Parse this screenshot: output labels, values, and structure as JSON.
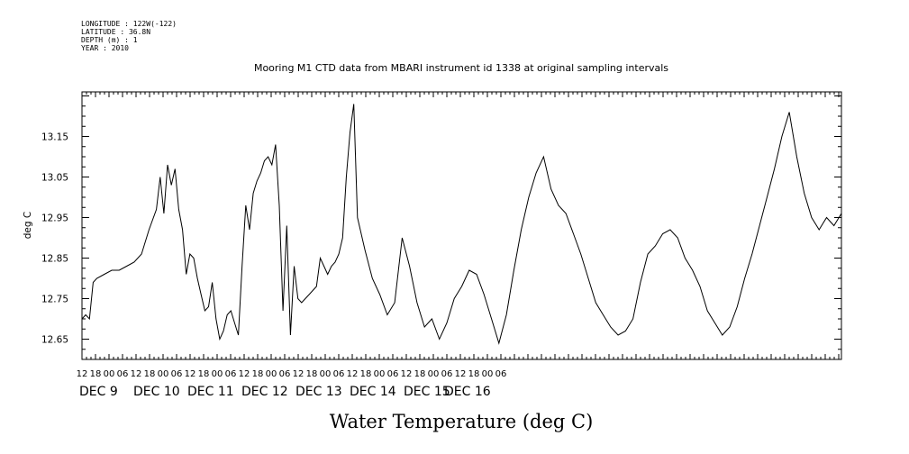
{
  "header": {
    "longitude": "LONGITUDE : 122W(-122)",
    "latitude": "LATITUDE : 36.8N",
    "depth": "DEPTH (m) : 1",
    "year": "YEAR : 2010"
  },
  "chart_data": {
    "type": "line",
    "title": "Mooring M1 CTD data from MBARI instrument id 1338 at original sampling intervals",
    "xlabel": "Water Temperature (deg C)",
    "ylabel": "deg C",
    "x_unit": "hours since DEC 9 00:00",
    "xlim": [
      -12,
      90
    ],
    "ylim": [
      12.6,
      13.26
    ],
    "yticks": [
      12.65,
      12.75,
      12.85,
      12.95,
      13.05,
      13.15
    ],
    "ytick_labels": [
      "12.65",
      "12.75",
      "12.85",
      "12.95",
      "13.05",
      "13.15"
    ],
    "hour_labels": [
      "12",
      "18",
      "00",
      "06",
      "12",
      "18",
      "00",
      "06",
      "12",
      "18",
      "00",
      "06",
      "12",
      "18",
      "00",
      "06",
      "12",
      "18",
      "00",
      "06",
      "12",
      "18",
      "00",
      "06",
      "12",
      "18",
      "00",
      "06",
      "12",
      "18",
      "00",
      "06"
    ],
    "day_labels": [
      {
        "label": "DEC  9",
        "x": -12
      },
      {
        "label": "DEC 10",
        "x": 12
      },
      {
        "label": "DEC 11",
        "x": 36
      },
      {
        "label": "DEC 12",
        "x": 60
      },
      {
        "label": "DEC 13",
        "x": 84
      },
      {
        "label": "DEC 14",
        "x": 108
      },
      {
        "label": "DEC 15",
        "x": 132
      },
      {
        "label": "DEC 16",
        "x": 150
      }
    ],
    "grid": false,
    "series": [
      {
        "color": "#000000",
        "x": [
          -12,
          -11.5,
          -11,
          -10.5,
          -10,
          -9,
          -8,
          -7,
          -6,
          -5,
          -4,
          -3,
          -2,
          -1.5,
          -1,
          -0.5,
          0,
          0.5,
          1,
          1.5,
          2,
          2.5,
          3,
          3.5,
          4,
          4.5,
          5,
          5.5,
          6,
          6.5,
          7,
          7.5,
          8,
          8.5,
          9,
          9.5,
          10,
          10.5,
          11,
          11.5,
          12,
          12.5,
          13,
          13.5,
          14,
          14.5,
          15,
          15.5,
          16,
          16.5,
          17,
          17.5,
          18,
          18.5,
          19,
          19.5,
          20,
          20.5,
          21,
          21.5,
          22,
          22.5,
          23,
          23.5,
          24,
          24.5,
          25,
          26,
          27,
          28,
          29,
          30,
          31,
          32,
          33,
          34,
          35,
          36,
          37,
          38,
          39,
          40,
          41,
          42,
          43,
          44,
          45,
          46,
          47,
          48,
          49,
          50,
          51,
          52,
          53,
          54,
          55,
          56,
          57,
          58,
          59,
          60,
          61,
          62,
          63,
          64,
          65,
          66,
          67,
          68,
          69,
          70,
          71,
          72,
          73,
          74,
          75,
          76,
          77,
          78,
          79,
          80,
          81,
          82,
          83,
          84,
          85,
          86,
          87,
          88,
          89,
          90
        ],
        "y": [
          12.7,
          12.71,
          12.7,
          12.79,
          12.8,
          12.81,
          12.82,
          12.82,
          12.83,
          12.84,
          12.86,
          12.92,
          12.97,
          13.05,
          12.96,
          13.08,
          13.03,
          13.07,
          12.97,
          12.92,
          12.81,
          12.86,
          12.85,
          12.8,
          12.76,
          12.72,
          12.73,
          12.79,
          12.7,
          12.65,
          12.67,
          12.71,
          12.72,
          12.69,
          12.66,
          12.83,
          12.98,
          12.92,
          13.01,
          13.04,
          13.06,
          13.09,
          13.1,
          13.08,
          13.13,
          12.98,
          12.72,
          12.93,
          12.66,
          12.83,
          12.75,
          12.74,
          12.75,
          12.76,
          12.77,
          12.78,
          12.85,
          12.83,
          12.81,
          12.83,
          12.84,
          12.86,
          12.9,
          13.05,
          13.16,
          13.23,
          12.95,
          12.87,
          12.8,
          12.76,
          12.71,
          12.74,
          12.9,
          12.83,
          12.74,
          12.68,
          12.7,
          12.65,
          12.69,
          12.75,
          12.78,
          12.82,
          12.81,
          12.76,
          12.7,
          12.64,
          12.71,
          12.82,
          12.92,
          13.0,
          13.06,
          13.1,
          13.02,
          12.98,
          12.96,
          12.91,
          12.86,
          12.8,
          12.74,
          12.71,
          12.68,
          12.66,
          12.67,
          12.7,
          12.79,
          12.86,
          12.88,
          12.91,
          12.92,
          12.9,
          12.85,
          12.82,
          12.78,
          12.72,
          12.69,
          12.66,
          12.68,
          12.73,
          12.8,
          12.86,
          12.93,
          13.0,
          13.07,
          13.15,
          13.21,
          13.1,
          13.01,
          12.95,
          12.92,
          12.95,
          12.93,
          12.96
        ]
      }
    ]
  }
}
